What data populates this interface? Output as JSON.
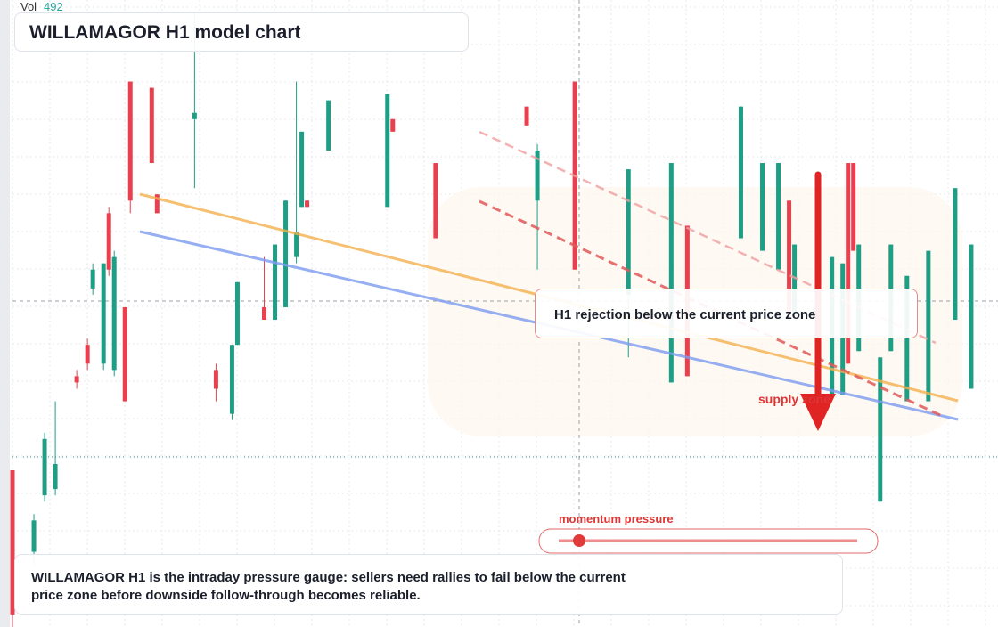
{
  "chart_data": {
    "type": "candlestick",
    "title": "WILLAMAGOR H1 model chart",
    "volume_label": "Vol",
    "volume": "492",
    "annotation": "H1 rejection below the current price zone",
    "zone_label": "supply zone",
    "gauge_label": "momentum pressure",
    "description": "WILLAMAGOR H1 is the intraday pressure gauge: sellers need rallies to fail below the current price zone before downside follow-through becomes reliable.",
    "up_color": "#1f9e86",
    "down_color": "#e8404e",
    "grid": true,
    "xlim": [
      0,
      184
    ],
    "ylim": [
      0,
      100
    ],
    "x": [
      0,
      4,
      6,
      8,
      12,
      14,
      15,
      17,
      18,
      19,
      21,
      22,
      26,
      27,
      34,
      38,
      41,
      42,
      47,
      49,
      51,
      53,
      54,
      55,
      59,
      70,
      71,
      79,
      96,
      98,
      105,
      115,
      123,
      126,
      136,
      140,
      143,
      145,
      146,
      153,
      155,
      156,
      157,
      158,
      162,
      164,
      167,
      171,
      176,
      179
    ],
    "open": [
      25,
      12,
      21,
      22,
      40,
      45,
      54,
      42,
      66,
      41,
      51,
      87,
      86,
      69,
      81,
      41,
      34,
      45,
      51,
      49,
      51,
      59,
      67,
      68,
      76,
      67,
      81,
      74,
      83,
      68,
      87,
      53,
      39,
      64,
      62,
      60,
      57,
      68,
      50,
      37,
      37,
      74,
      74,
      44,
      20,
      44,
      36,
      36,
      49,
      38
    ],
    "high": [
      25,
      18,
      31,
      36,
      41,
      46,
      58,
      58,
      67,
      60,
      51,
      87,
      86,
      69,
      98,
      42,
      45,
      55,
      59,
      61,
      68,
      87,
      79,
      68,
      84,
      85,
      81,
      74,
      83,
      77,
      87,
      73,
      74,
      64,
      83,
      74,
      74,
      68,
      61,
      59,
      58,
      74,
      74,
      61,
      43,
      61,
      56,
      60,
      70,
      61
    ],
    "low": [
      0,
      10,
      20,
      21,
      38,
      41,
      53,
      41,
      56,
      40,
      36,
      66,
      74,
      66,
      70,
      36,
      33,
      45,
      49,
      49,
      51,
      58,
      67,
      67,
      76,
      67,
      79,
      62,
      80,
      57,
      57,
      43,
      39,
      40,
      62,
      60,
      57,
      50,
      50,
      37,
      37,
      42,
      60,
      44,
      20,
      44,
      36,
      36,
      49,
      38
    ],
    "close": [
      2,
      17,
      30,
      26,
      39,
      42,
      57,
      58,
      57,
      59,
      36,
      68,
      74,
      66,
      82,
      38,
      45,
      55,
      49,
      61,
      68,
      63,
      79,
      67,
      84,
      85,
      79,
      62,
      80,
      76,
      57,
      73,
      74,
      40,
      83,
      74,
      74,
      50,
      61,
      59,
      58,
      42,
      60,
      61,
      43,
      61,
      56,
      60,
      70,
      61
    ]
  }
}
